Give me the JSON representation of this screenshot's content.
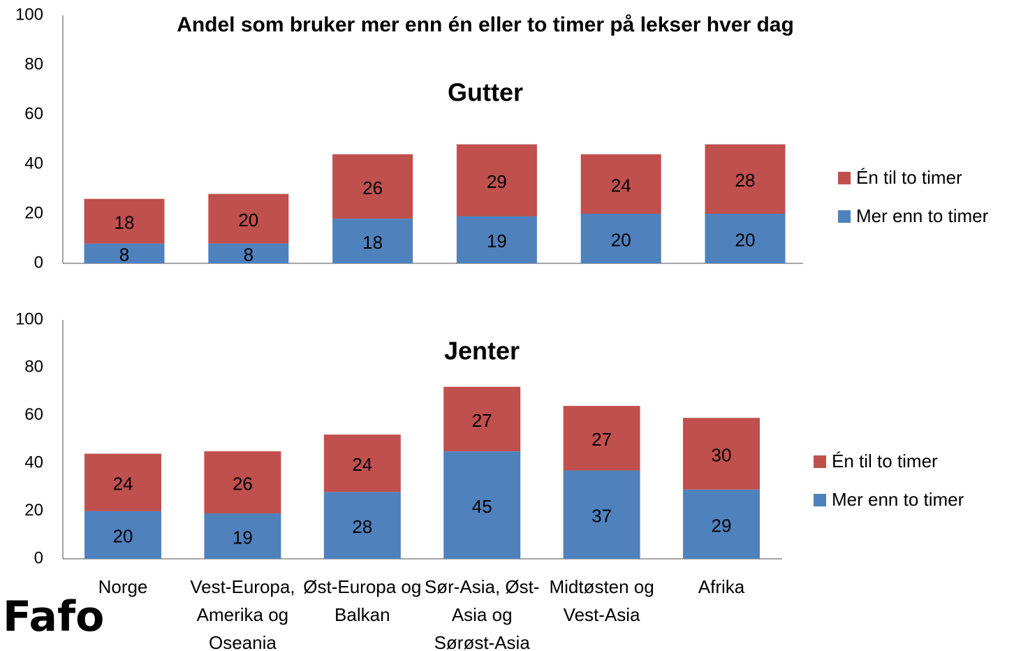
{
  "title": "Andel som bruker mer enn én eller to timer på lekser hver dag",
  "logo": "Fafo",
  "chart_data": [
    {
      "type": "bar",
      "stacked": true,
      "subtitle": "Gutter",
      "series": [
        {
          "name": "Mer enn to timer",
          "color": "#4f81bd",
          "values": [
            8,
            8,
            18,
            19,
            20,
            20
          ]
        },
        {
          "name": "Én til to timer",
          "color": "#c0504d",
          "values": [
            18,
            20,
            26,
            29,
            24,
            28
          ]
        }
      ],
      "ylim": [
        0,
        100
      ],
      "yticks": [
        0,
        20,
        40,
        60,
        80,
        100
      ],
      "grid": false,
      "legend": "right"
    },
    {
      "type": "bar",
      "stacked": true,
      "subtitle": "Jenter",
      "categories": [
        "Norge",
        "Vest-Europa, Amerika og Oseania",
        "Øst-Europa og Balkan",
        "Sør-Asia, Øst-Asia og Sørøst-Asia",
        "Midtøsten og Vest-Asia",
        "Afrika"
      ],
      "series": [
        {
          "name": "Mer enn to timer",
          "color": "#4f81bd",
          "values": [
            20,
            19,
            28,
            45,
            37,
            29
          ]
        },
        {
          "name": "Én til to timer",
          "color": "#c0504d",
          "values": [
            24,
            26,
            24,
            27,
            27,
            30
          ]
        }
      ],
      "ylim": [
        0,
        100
      ],
      "yticks": [
        0,
        20,
        40,
        60,
        80,
        100
      ],
      "grid": false,
      "legend": "right"
    }
  ]
}
